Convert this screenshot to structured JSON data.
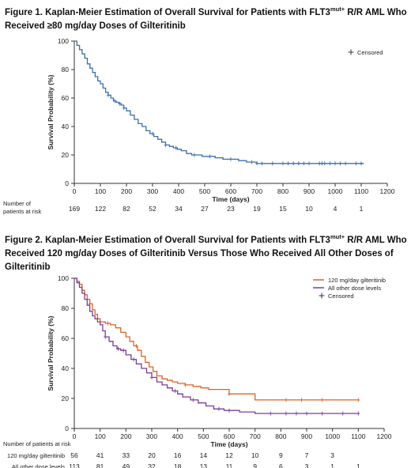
{
  "figures": [
    {
      "title_main": "Figure 1. Kaplan-Meier Estimation of Overall Survival for Patients with FLT3",
      "title_sup": "mut+",
      "title_rest": " R/R AML Who Received ≥80 mg/day Doses of Gilteritinib"
    },
    {
      "title_main": "Figure 2. Kaplan-Meier Estimation of Overall Survival for Patients with FLT3",
      "title_sup": "mut+",
      "title_rest": " R/R AML Who Received 120 mg/day Doses of Gilteritinib Versus Those Who Received All Other Doses of Gilteritinib"
    }
  ],
  "chart_data": [
    {
      "type": "line",
      "step": true,
      "xlabel": "Time (days)",
      "ylabel": "Survival Probability (%)",
      "xlim": [
        0,
        1200
      ],
      "ylim": [
        0,
        100
      ],
      "xticks": [
        0,
        100,
        200,
        300,
        400,
        500,
        600,
        700,
        800,
        900,
        1000,
        1100,
        1200
      ],
      "yticks": [
        0,
        20,
        40,
        60,
        80,
        100
      ],
      "legend_position": "top-right",
      "legend": [
        {
          "label": "Censored",
          "marker": "+"
        }
      ],
      "series": [
        {
          "color": "#3d6fa8",
          "x": [
            0,
            10,
            20,
            30,
            40,
            50,
            60,
            70,
            80,
            90,
            100,
            110,
            120,
            130,
            140,
            150,
            160,
            170,
            180,
            190,
            200,
            215,
            230,
            245,
            260,
            275,
            290,
            305,
            320,
            335,
            350,
            365,
            380,
            395,
            410,
            430,
            450,
            470,
            490,
            510,
            540,
            570,
            600,
            630,
            660,
            700,
            1110
          ],
          "y": [
            100,
            97,
            94,
            91,
            88,
            84,
            81,
            78,
            75,
            72,
            70,
            67,
            64,
            62,
            60,
            58,
            57,
            56,
            55,
            53,
            51,
            48,
            45,
            42,
            40,
            37,
            35,
            33,
            31,
            29,
            27,
            26,
            25,
            24,
            23,
            21,
            20,
            20,
            19,
            19,
            18,
            17,
            17,
            16,
            15,
            14,
            14
          ],
          "censored_x": [
            130,
            155,
            175,
            190,
            300,
            350,
            390,
            460,
            520,
            600,
            680,
            700,
            720,
            760,
            800,
            820,
            840,
            860,
            880,
            900,
            940,
            950,
            960,
            980,
            1000,
            1020,
            1040,
            1080,
            1100
          ]
        }
      ],
      "at_risk": {
        "header": [
          "Number of",
          "patients at risk"
        ],
        "x": [
          0,
          100,
          200,
          300,
          400,
          500,
          600,
          700,
          800,
          900,
          1000,
          1100
        ],
        "rows": [
          {
            "label": "",
            "values": [
              "169",
              "122",
              "82",
              "52",
              "34",
              "27",
              "23",
              "19",
              "15",
              "10",
              "4",
              "1"
            ]
          }
        ]
      }
    },
    {
      "type": "line",
      "step": true,
      "xlabel": "Time (days)",
      "ylabel": "Survival Probability (%)",
      "xlim": [
        0,
        1200
      ],
      "ylim": [
        0,
        100
      ],
      "xticks": [
        0,
        100,
        200,
        300,
        400,
        500,
        600,
        700,
        800,
        900,
        1000,
        1100,
        1200
      ],
      "yticks": [
        0,
        20,
        40,
        60,
        80,
        100
      ],
      "legend_position": "top-right",
      "legend": [
        {
          "label": "120 mg/day gilteritinib",
          "color": "#d9642b"
        },
        {
          "label": "All other dose levels",
          "color": "#7a3d99"
        },
        {
          "label": "Censored",
          "marker": "+"
        }
      ],
      "series": [
        {
          "name": "120 mg/day gilteritinib",
          "color": "#d9642b",
          "x": [
            0,
            10,
            20,
            30,
            40,
            50,
            60,
            70,
            80,
            90,
            100,
            120,
            140,
            160,
            180,
            200,
            215,
            230,
            245,
            260,
            275,
            290,
            305,
            320,
            340,
            360,
            380,
            400,
            430,
            460,
            490,
            520,
            600,
            700,
            1100
          ],
          "y": [
            100,
            98,
            96,
            92,
            89,
            86,
            83,
            79,
            76,
            73,
            71,
            70,
            69,
            67,
            64,
            61,
            58,
            55,
            52,
            48,
            44,
            41,
            38,
            35,
            33,
            32,
            31,
            30,
            29,
            28,
            27,
            26,
            23,
            19,
            19
          ],
          "censored_x": [
            60,
            130,
            240,
            430,
            600,
            820,
            880,
            960,
            1100
          ]
        },
        {
          "name": "All other dose levels",
          "color": "#7a3d99",
          "x": [
            0,
            10,
            20,
            30,
            40,
            50,
            60,
            70,
            80,
            90,
            100,
            110,
            120,
            135,
            150,
            165,
            180,
            200,
            220,
            240,
            260,
            280,
            300,
            320,
            340,
            360,
            380,
            400,
            420,
            450,
            480,
            510,
            540,
            580,
            640,
            700,
            1100
          ],
          "y": [
            100,
            97,
            94,
            90,
            86,
            82,
            78,
            75,
            73,
            71,
            69,
            65,
            61,
            58,
            55,
            53,
            52,
            49,
            46,
            43,
            40,
            37,
            34,
            31,
            29,
            27,
            25,
            23,
            21,
            19,
            17,
            15,
            13,
            12,
            11,
            10,
            10
          ],
          "censored_x": [
            120,
            170,
            190,
            230,
            300,
            390,
            460,
            560,
            600,
            760,
            820,
            860,
            900,
            960,
            1040,
            1100
          ]
        }
      ],
      "at_risk": {
        "header": [
          "Number of patients at risk"
        ],
        "x": [
          0,
          100,
          200,
          300,
          400,
          500,
          600,
          700,
          800,
          900,
          1000,
          1100
        ],
        "rows": [
          {
            "label": "120 mg/day gilteritinib",
            "values": [
              "56",
              "41",
              "33",
              "20",
              "16",
              "14",
              "12",
              "10",
              "9",
              "7",
              "3",
              ""
            ]
          },
          {
            "label": "All other dose levels",
            "values": [
              "113",
              "81",
              "49",
              "32",
              "18",
              "13",
              "11",
              "9",
              "6",
              "3",
              "1",
              "1"
            ]
          }
        ]
      }
    }
  ]
}
